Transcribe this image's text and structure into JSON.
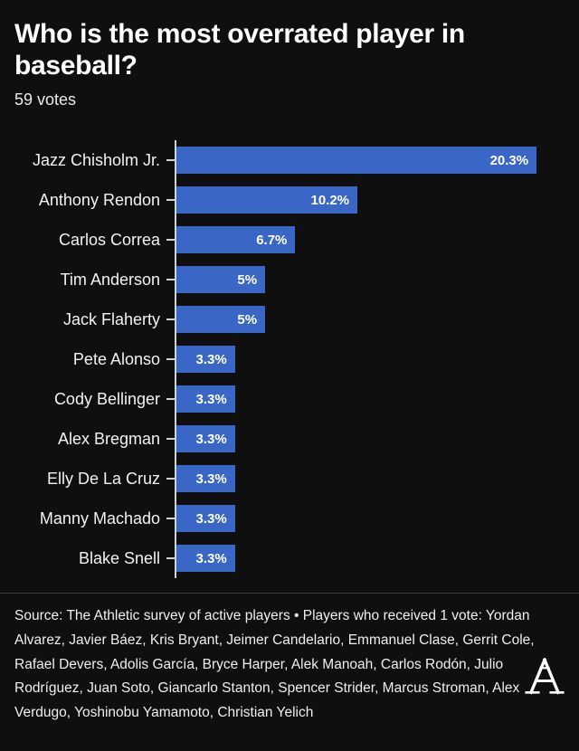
{
  "header": {
    "title": "Who is the most overrated player in baseball?",
    "votes": "59 votes"
  },
  "chart_data": {
    "type": "bar",
    "orientation": "horizontal",
    "title": "Who is the most overrated player in baseball?",
    "subtitle": "59 votes",
    "categories": [
      "Jazz Chisholm Jr.",
      "Anthony Rendon",
      "Carlos Correa",
      "Tim Anderson",
      "Jack Flaherty",
      "Pete Alonso",
      "Cody Bellinger",
      "Alex Bregman",
      "Elly De La Cruz",
      "Manny Machado",
      "Blake Snell"
    ],
    "values": [
      20.3,
      10.2,
      6.7,
      5,
      5,
      3.3,
      3.3,
      3.3,
      3.3,
      3.3,
      3.3
    ],
    "value_labels": [
      "20.3%",
      "10.2%",
      "6.7%",
      "5%",
      "5%",
      "3.3%",
      "3.3%",
      "3.3%",
      "3.3%",
      "3.3%",
      "3.3%"
    ],
    "xlabel": "",
    "ylabel": "",
    "xlim": [
      0,
      20.3
    ],
    "grid": false,
    "legend": false,
    "bar_color": "#3a67c5",
    "axis_color": "#ccd4db",
    "background_color": "#0f0f10"
  },
  "footer": {
    "source_text": "Source: The Athletic survey of active players • Players who received 1 vote: Yordan Alvarez, Javier Báez, Kris Bryant, Jeimer Candelario, Emmanuel Clase, Gerrit Cole, Rafael Devers, Adolis García, Bryce Harper, Alek Manoah, Carlos Rodón, Julio Rodríguez, Juan Soto, Giancarlo Stanton, Spencer Strider, Marcus Stroman, Alex Verdugo, Yoshinobu Yamamoto, Christian Yelich",
    "logo_name": "the-athletic-a-logo"
  }
}
